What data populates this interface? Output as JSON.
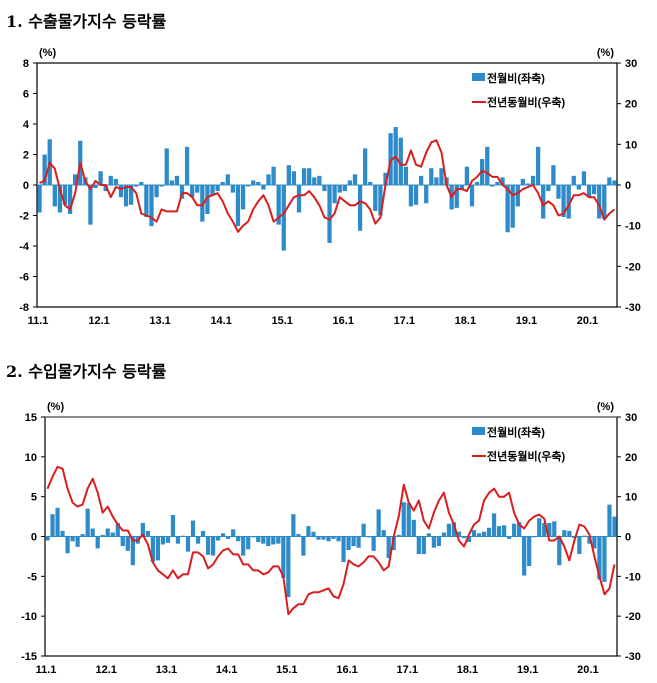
{
  "chart_data": [
    {
      "type": "bar+line",
      "title": "1. 수출물가지수 등락률",
      "left_unit": "(%)",
      "right_unit": "(%)",
      "x_start": "2011-01",
      "xticks": [
        "11.1",
        "12.1",
        "13.1",
        "14.1",
        "15.1",
        "16.1",
        "17.1",
        "18.1",
        "19.1",
        "20.1"
      ],
      "ylim_left": [
        -8,
        8
      ],
      "yticks_left": [
        8,
        6,
        4,
        2,
        0,
        -2,
        -4,
        -6,
        -8
      ],
      "ylim_right": [
        -30,
        30
      ],
      "yticks_right": [
        30,
        20,
        10,
        0,
        -10,
        -20,
        -30
      ],
      "legend_position": "top-right",
      "colors": {
        "bar": "#2e8bc9",
        "line": "#d81e1e"
      },
      "series": [
        {
          "name": "전월비(좌축)",
          "type": "bar",
          "axis": "left",
          "values": [
            -1.8,
            2.0,
            3.0,
            -1.4,
            -1.8,
            -1.3,
            -1.9,
            0.7,
            2.9,
            0.5,
            -2.6,
            -0.2,
            0.9,
            -0.4,
            0.6,
            0.4,
            -0.8,
            -1.4,
            -1.3,
            -0.1,
            0.2,
            -2.1,
            -2.7,
            -0.8,
            -0.1,
            2.4,
            0.3,
            0.6,
            -0.9,
            2.5,
            -0.8,
            -0.5,
            -2.4,
            -1.9,
            -0.7,
            -0.4,
            0.2,
            0.7,
            -0.5,
            -2.7,
            -1.6,
            -0.1,
            0.3,
            0.2,
            -0.3,
            0.7,
            1.2,
            -2.6,
            -4.3,
            1.3,
            0.9,
            -1.8,
            1.1,
            1.1,
            0.5,
            0.6,
            -0.4,
            -3.8,
            -1.2,
            -0.5,
            -0.4,
            0.3,
            0.7,
            -3.0,
            2.4,
            0.2,
            -1.7,
            -2.0,
            0.8,
            3.4,
            3.8,
            3.1,
            1.2,
            -1.4,
            -1.3,
            0.6,
            -1.2,
            1.1,
            0.5,
            1.1,
            0.5,
            -1.6,
            -1.5,
            -0.3,
            1.2,
            -1.4,
            0.2,
            1.7,
            2.5,
            -0.1,
            0.2,
            0.5,
            -3.1,
            -2.8,
            -1.4,
            0.4,
            0.1,
            0.6,
            2.5,
            -2.2,
            -0.4,
            1.3,
            -0.9,
            -2.1,
            -2.2,
            0.6,
            -0.3,
            0.9,
            -0.8,
            -0.6,
            -2.2,
            -2.2,
            0.5,
            0.3
          ]
        },
        {
          "name": "전년동월비(우축)",
          "type": "line",
          "axis": "right",
          "values": [
            0.5,
            1,
            5.5,
            4,
            -1,
            -5,
            -6,
            -2,
            5.5,
            1,
            -1,
            1,
            0,
            0,
            -3,
            -0.5,
            -1,
            -0.5,
            -0.5,
            -2,
            -7,
            -7.5,
            -8,
            -9,
            -6,
            -6.5,
            -6.5,
            -6.5,
            -2,
            -2,
            -3,
            -5,
            -5,
            -3,
            -2.5,
            -2,
            -4,
            -7,
            -9,
            -11.5,
            -10,
            -9,
            -6,
            -4,
            -2.5,
            -5,
            -9,
            -8,
            -7,
            -5,
            -3,
            -2.5,
            -2.5,
            -1.5,
            -3,
            -5,
            -8,
            -8.5,
            -7,
            -3,
            -4,
            -5,
            -5,
            -4,
            -4.5,
            -6,
            -9.5,
            -8,
            0,
            6,
            7,
            5,
            5,
            8.5,
            5,
            4.5,
            8,
            10.5,
            11,
            8,
            0,
            -3,
            -1,
            -1,
            -1.5,
            1,
            2,
            3.5,
            3,
            2,
            2,
            0,
            -1,
            -2.5,
            -2,
            -1,
            -0.5,
            0,
            -2,
            -5,
            -4,
            -5,
            -7.5,
            -7,
            -5,
            -2.5,
            -2.5,
            -2,
            -3,
            -3,
            -5,
            -8.5,
            -7,
            -6
          ]
        }
      ]
    },
    {
      "type": "bar+line",
      "title": "2. 수입물가지수 등락률",
      "left_unit": "(%)",
      "right_unit": "(%)",
      "x_start": "2011-01",
      "xticks": [
        "11.1",
        "12.1",
        "13.1",
        "14.1",
        "15.1",
        "16.1",
        "17.1",
        "18.1",
        "19.1",
        "20.1"
      ],
      "ylim_left": [
        -15,
        15
      ],
      "yticks_left": [
        15,
        10,
        5,
        0,
        -5,
        -10,
        -15
      ],
      "ylim_right": [
        -30,
        30
      ],
      "yticks_right": [
        30,
        20,
        10,
        0,
        -10,
        -20,
        -30
      ],
      "legend_position": "top-right",
      "colors": {
        "bar": "#2e8bc9",
        "line": "#d81e1e"
      },
      "series": [
        {
          "name": "전월비(좌축)",
          "type": "bar",
          "axis": "left",
          "values": [
            -0.5,
            2.8,
            3.6,
            0.7,
            -2.1,
            -0.6,
            -1.3,
            0.3,
            3.5,
            1.0,
            -1.5,
            0.2,
            1.0,
            0.5,
            1.7,
            -1.2,
            -1.8,
            -3.6,
            -0.9,
            1.7,
            0.7,
            -3.2,
            -3.0,
            -1.0,
            -0.8,
            2.7,
            -0.9,
            0.1,
            -1.9,
            2.0,
            -0.9,
            0.7,
            -2.3,
            -2.4,
            -0.5,
            0.4,
            -0.3,
            0.9,
            -0.6,
            -2.4,
            -1.6,
            -0.1,
            -0.7,
            -0.9,
            -1.2,
            -1.0,
            -0.9,
            -5.2,
            -7.6,
            2.8,
            0.3,
            -2.4,
            1.3,
            0.6,
            -0.4,
            -0.4,
            -0.6,
            -0.3,
            -0.6,
            -3.2,
            -1.7,
            -1.2,
            -1.4,
            1.6,
            -0.1,
            -1.8,
            3.4,
            0.8,
            -2.7,
            -1.7,
            0.2,
            4.3,
            4.2,
            2.1,
            -2.2,
            -2.2,
            0.4,
            -1.4,
            -1.2,
            0.5,
            1.6,
            1.8,
            0.6,
            -0.2,
            -0.7,
            0.8,
            0.4,
            0.6,
            1.1,
            2.9,
            1.3,
            1.4,
            -0.3,
            1.6,
            1.8,
            -4.9,
            -3.7,
            -0.1,
            2.3,
            1.7,
            1.7,
            1.9,
            -3.6,
            0.8,
            0.7,
            -0.2,
            -2.2,
            0.1,
            -0.9,
            -1.5,
            -5.4,
            -5.7,
            4.0,
            2.5
          ]
        },
        {
          "name": "전년동월비(우축)",
          "type": "line",
          "axis": "right",
          "values": [
            12,
            15,
            17.5,
            17,
            12,
            8.5,
            7.5,
            8,
            12,
            14.5,
            11,
            6,
            7.5,
            5,
            3,
            1.5,
            1.5,
            -1,
            -1,
            0.5,
            -2,
            -6.5,
            -8.5,
            -9.5,
            -10.5,
            -8.5,
            -10.5,
            -9.5,
            -9.5,
            -4,
            -4,
            -5,
            -8,
            -7,
            -5,
            -3.5,
            -3,
            -4.5,
            -4.5,
            -7,
            -7,
            -8.5,
            -8.5,
            -9.5,
            -9,
            -7.5,
            -7.5,
            -10,
            -19.5,
            -18,
            -17,
            -17,
            -14.5,
            -14,
            -14,
            -13.5,
            -13,
            -15,
            -15.5,
            -12,
            -6,
            -7,
            -7.5,
            -6.5,
            -5,
            -5,
            -6.5,
            -8.5,
            -7.5,
            0,
            5,
            13,
            8.5,
            6.5,
            9,
            4,
            2,
            6,
            9,
            11,
            6,
            3,
            -1,
            -2.5,
            0.5,
            3,
            4,
            9,
            11,
            12,
            10,
            10,
            11,
            6,
            3,
            2,
            4,
            5,
            5.5,
            4.5,
            -1,
            -1,
            0,
            -2.5,
            -6,
            -1,
            3,
            2.5,
            0.5,
            -5,
            -10,
            -14.5,
            -13,
            -7
          ]
        }
      ]
    }
  ]
}
